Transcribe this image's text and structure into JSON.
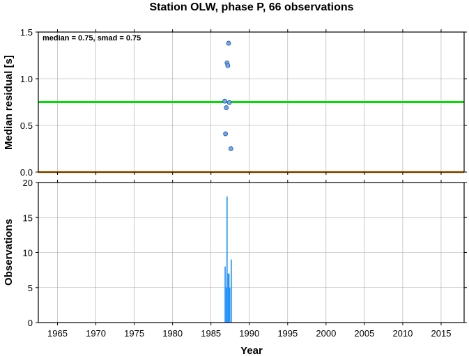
{
  "chart_data": {
    "title": "Station OLW, phase P, 66 observations",
    "x": {
      "label": "Year",
      "range": [
        1962.5,
        2018
      ],
      "ticks": [
        1965,
        1970,
        1975,
        1980,
        1985,
        1990,
        1995,
        2000,
        2005,
        2010,
        2015
      ],
      "tick_labels": [
        "1965",
        "1970",
        "1975",
        "1980",
        "1985",
        "1990",
        "1995",
        "2000",
        "2005",
        "2010",
        "2015"
      ]
    },
    "panels": [
      {
        "type": "scatter",
        "ylabel": "Median residual [s]",
        "ylim": [
          0,
          1.5
        ],
        "yticks": [
          0,
          0.5,
          1.0,
          1.5
        ],
        "ytick_labels": [
          "0.0",
          "0.5",
          "1.0",
          "1.5"
        ],
        "grid": true,
        "annotation": "median = 0.75, smad = 0.75",
        "lines": [
          {
            "y": 0.75,
            "color": "#00e000"
          },
          {
            "y": 0.0,
            "color": "#f0a020"
          }
        ],
        "marker_color": "#6fa8f0",
        "points": [
          {
            "x": 1987.3,
            "y": 1.38
          },
          {
            "x": 1987.1,
            "y": 1.17
          },
          {
            "x": 1987.2,
            "y": 1.14
          },
          {
            "x": 1986.8,
            "y": 0.76
          },
          {
            "x": 1987.4,
            "y": 0.745
          },
          {
            "x": 1987.0,
            "y": 0.69
          },
          {
            "x": 1986.9,
            "y": 0.41
          },
          {
            "x": 1987.6,
            "y": 0.25
          }
        ]
      },
      {
        "type": "bar",
        "ylabel": "Observations",
        "ylim": [
          0,
          20
        ],
        "yticks": [
          0,
          5,
          10,
          15,
          20
        ],
        "ytick_labels": [
          "0",
          "5",
          "10",
          "15",
          "20"
        ],
        "grid": true,
        "bar_color": "#1e90ff",
        "bars": [
          {
            "x": 1986.85,
            "y": 8
          },
          {
            "x": 1987.0,
            "y": 5
          },
          {
            "x": 1987.1,
            "y": 18
          },
          {
            "x": 1987.25,
            "y": 7
          },
          {
            "x": 1987.35,
            "y": 7
          },
          {
            "x": 1987.45,
            "y": 5
          },
          {
            "x": 1987.65,
            "y": 9
          }
        ]
      }
    ]
  }
}
